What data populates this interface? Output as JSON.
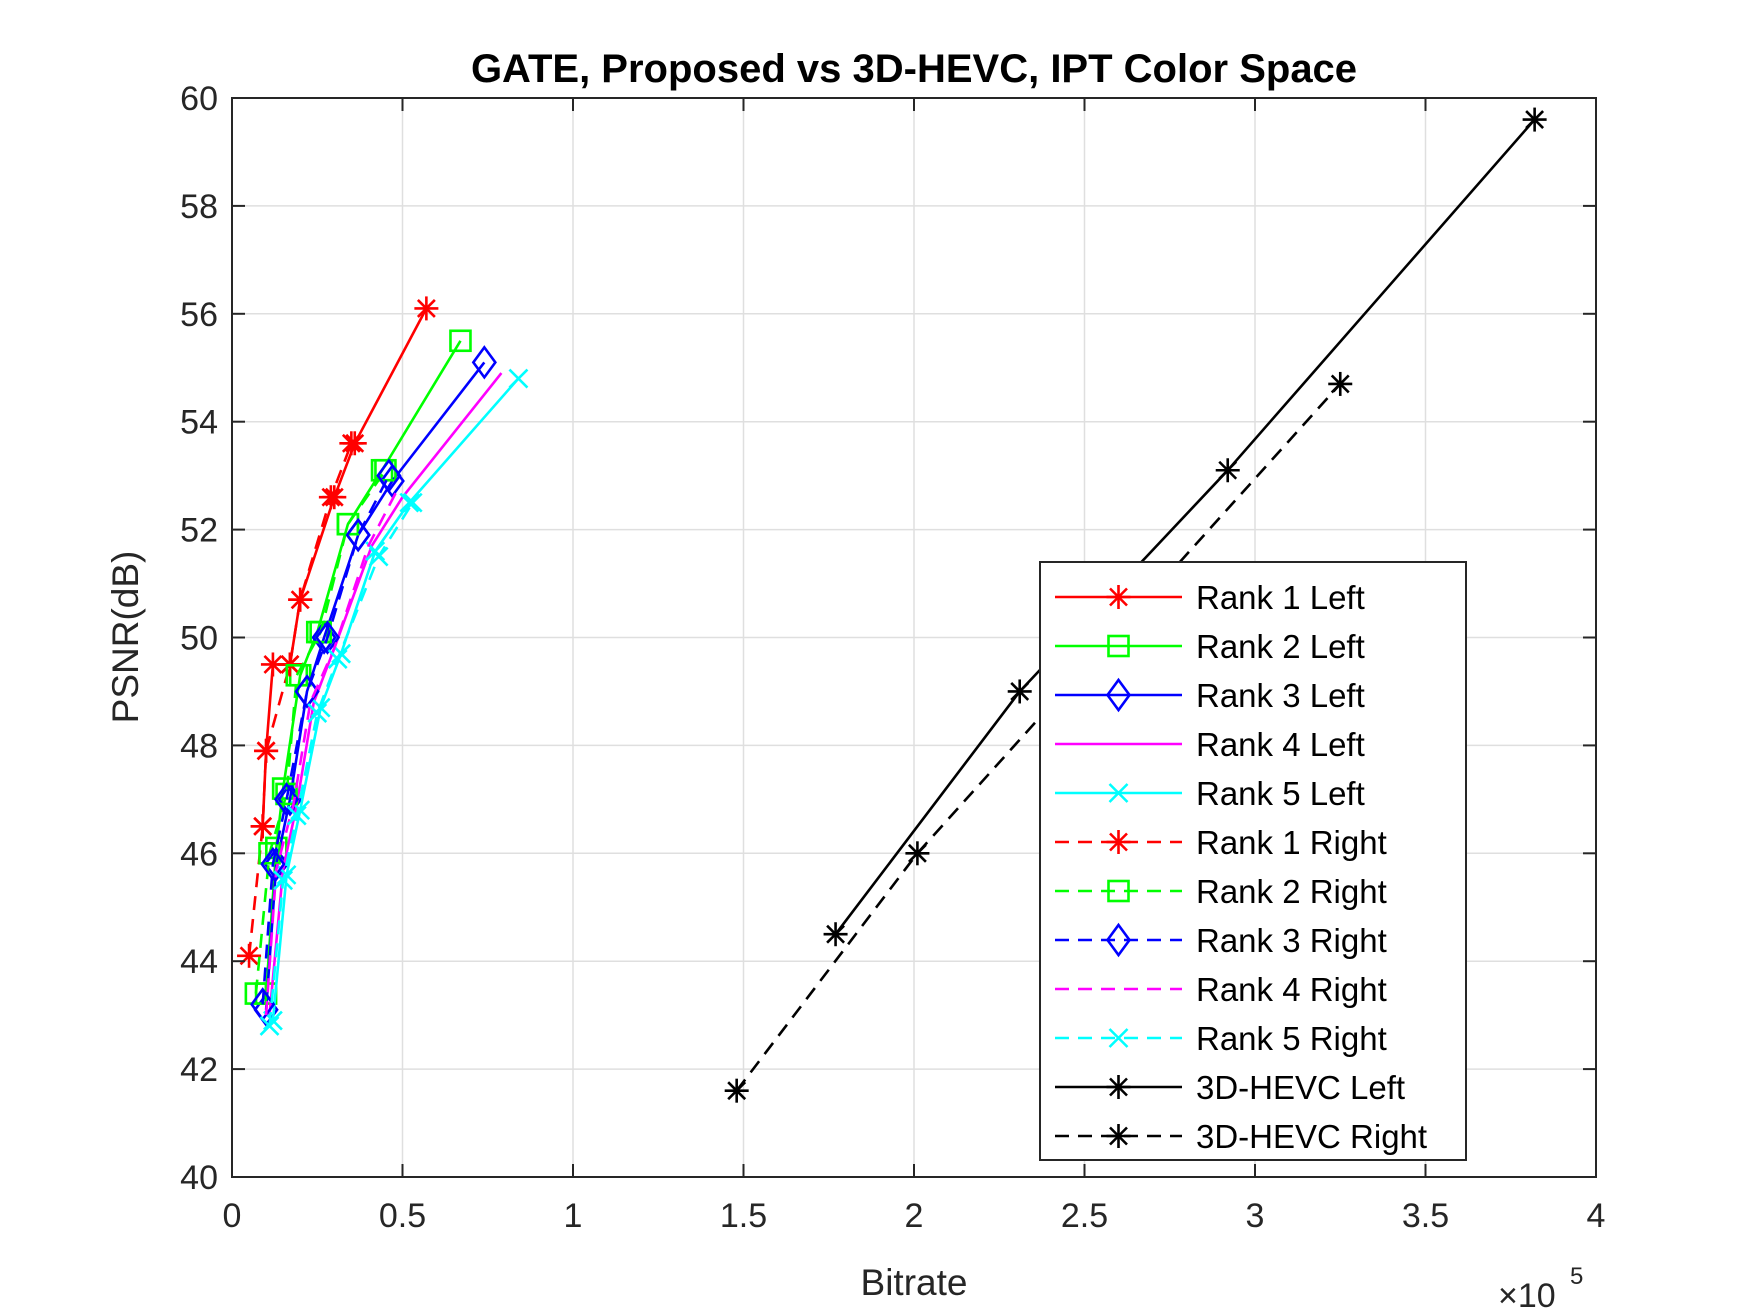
{
  "chart_data": {
    "type": "line",
    "title": "GATE, Proposed vs 3D-HEVC, IPT Color Space",
    "xlabel": "Bitrate",
    "ylabel": "PSNR(dB)",
    "x_exponent_label": "×10",
    "x_exponent_power": "5",
    "xlim": [
      0,
      4
    ],
    "ylim": [
      40,
      60
    ],
    "xticks": [
      0,
      0.5,
      1,
      1.5,
      2,
      2.5,
      3,
      3.5,
      4
    ],
    "xtick_labels": [
      "0",
      "0.5",
      "1",
      "1.5",
      "2",
      "2.5",
      "3",
      "3.5",
      "4"
    ],
    "yticks": [
      40,
      42,
      44,
      46,
      48,
      50,
      52,
      54,
      56,
      58,
      60
    ],
    "ytick_labels": [
      "40",
      "42",
      "44",
      "46",
      "48",
      "50",
      "52",
      "54",
      "56",
      "58",
      "60"
    ],
    "grid": true,
    "legend_position": "bottom-right",
    "series": [
      {
        "name": "Rank 1 Left",
        "color": "#ff0000",
        "dash": "solid",
        "marker": "asterisk",
        "x": [
          0.09,
          0.1,
          0.12,
          0.17,
          0.2,
          0.3,
          0.36,
          0.57
        ],
        "y": [
          46.5,
          47.9,
          49.5,
          49.5,
          50.7,
          52.6,
          53.6,
          56.1
        ]
      },
      {
        "name": "Rank 2 Left",
        "color": "#00ff00",
        "dash": "solid",
        "marker": "square",
        "x": [
          0.1,
          0.13,
          0.15,
          0.2,
          0.25,
          0.34,
          0.44,
          0.67
        ],
        "y": [
          43.4,
          46.1,
          47.2,
          49.3,
          50.1,
          52.1,
          53.1,
          55.5
        ]
      },
      {
        "name": "Rank 3 Left",
        "color": "#0000ff",
        "dash": "solid",
        "marker": "diamond",
        "x": [
          0.1,
          0.13,
          0.17,
          0.22,
          0.27,
          0.37,
          0.47,
          0.74
        ],
        "y": [
          43.1,
          45.8,
          47.0,
          49.0,
          50.0,
          51.9,
          52.9,
          55.1
        ]
      },
      {
        "name": "Rank 4 Left",
        "color": "#ff00ff",
        "dash": "solid",
        "marker": "none",
        "x": [
          0.11,
          0.15,
          0.19,
          0.24,
          0.3,
          0.41,
          0.5,
          0.79
        ],
        "y": [
          43.0,
          45.7,
          46.9,
          48.8,
          49.8,
          51.7,
          52.6,
          54.9
        ]
      },
      {
        "name": "Rank 5 Left",
        "color": "#00ffff",
        "dash": "solid",
        "marker": "x",
        "x": [
          0.12,
          0.16,
          0.2,
          0.26,
          0.32,
          0.42,
          0.52,
          0.84
        ],
        "y": [
          42.9,
          45.6,
          46.8,
          48.7,
          49.7,
          51.6,
          52.5,
          54.8
        ]
      },
      {
        "name": "Rank 1 Right",
        "color": "#ff0000",
        "dash": "dashed",
        "marker": "asterisk",
        "x": [
          0.05,
          0.09,
          0.1,
          0.17,
          0.2,
          0.29,
          0.35
        ],
        "y": [
          44.1,
          46.5,
          47.9,
          49.5,
          50.7,
          52.6,
          53.6
        ]
      },
      {
        "name": "Rank 2 Right",
        "color": "#00ff00",
        "dash": "dashed",
        "marker": "square",
        "x": [
          0.07,
          0.11,
          0.16,
          0.19,
          0.26,
          0.34,
          0.45
        ],
        "y": [
          43.4,
          46.0,
          47.1,
          49.3,
          50.1,
          52.1,
          53.1
        ]
      },
      {
        "name": "Rank 3 Right",
        "color": "#0000ff",
        "dash": "dashed",
        "marker": "diamond",
        "x": [
          0.09,
          0.12,
          0.16,
          0.22,
          0.28,
          0.37,
          0.46
        ],
        "y": [
          43.2,
          45.8,
          47.0,
          49.0,
          50.0,
          51.9,
          53.0
        ]
      },
      {
        "name": "Rank 4 Right",
        "color": "#ff00ff",
        "dash": "dashed",
        "marker": "none",
        "x": [
          0.1,
          0.13,
          0.18,
          0.23,
          0.3,
          0.4,
          0.49
        ],
        "y": [
          43.0,
          45.7,
          46.9,
          48.8,
          49.8,
          51.7,
          52.8
        ]
      },
      {
        "name": "Rank 5 Right",
        "color": "#00ffff",
        "dash": "dashed",
        "marker": "x",
        "x": [
          0.11,
          0.15,
          0.19,
          0.25,
          0.31,
          0.43,
          0.53
        ],
        "y": [
          42.8,
          45.5,
          46.7,
          48.6,
          49.6,
          51.5,
          52.5
        ]
      },
      {
        "name": "3D-HEVC Left",
        "color": "#000000",
        "dash": "solid",
        "marker": "asterisk",
        "x": [
          1.77,
          2.31,
          2.92,
          3.82
        ],
        "y": [
          44.5,
          49.0,
          53.1,
          59.6
        ]
      },
      {
        "name": "3D-HEVC Right",
        "color": "#000000",
        "dash": "dashed",
        "marker": "asterisk",
        "x": [
          1.48,
          2.01,
          3.25
        ],
        "y": [
          41.6,
          46.0,
          54.7
        ]
      }
    ]
  }
}
